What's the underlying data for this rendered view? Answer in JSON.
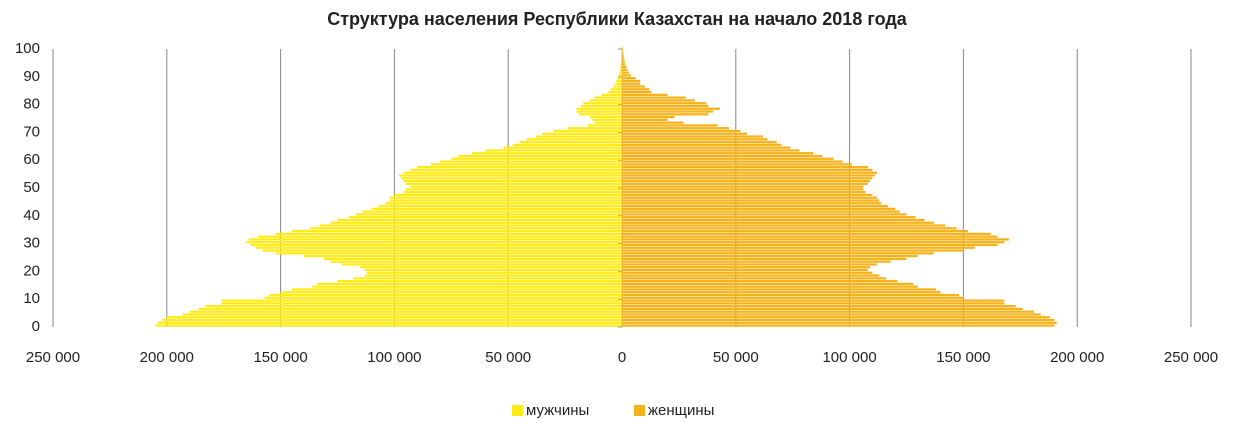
{
  "chart_data": {
    "type": "pyramid",
    "title": "Структура населения Республики Казахстан на начало 2018 года",
    "y": [
      0,
      1,
      2,
      3,
      4,
      5,
      6,
      7,
      8,
      9,
      10,
      11,
      12,
      13,
      14,
      15,
      16,
      17,
      18,
      19,
      20,
      21,
      22,
      23,
      24,
      25,
      26,
      27,
      28,
      29,
      30,
      31,
      32,
      33,
      34,
      35,
      36,
      37,
      38,
      39,
      40,
      41,
      42,
      43,
      44,
      45,
      46,
      47,
      48,
      49,
      50,
      51,
      52,
      53,
      54,
      55,
      56,
      57,
      58,
      59,
      60,
      61,
      62,
      63,
      64,
      65,
      66,
      67,
      68,
      69,
      70,
      71,
      72,
      73,
      74,
      75,
      76,
      77,
      78,
      79,
      80,
      81,
      82,
      83,
      84,
      85,
      86,
      87,
      88,
      89,
      90,
      91,
      92,
      93,
      94,
      95,
      96,
      97,
      98,
      99,
      100
    ],
    "series": [
      {
        "name": "мужчины",
        "color": "#ffeb1a",
        "values": [
          -205000,
          -204000,
          -202000,
          -200000,
          -193000,
          -190000,
          -186000,
          -183000,
          -176000,
          -176000,
          -157000,
          -155000,
          -150000,
          -145000,
          -136000,
          -134000,
          -125000,
          -118000,
          -113000,
          -112000,
          -113000,
          -115000,
          -123000,
          -128000,
          -131000,
          -140000,
          -152000,
          -158000,
          -161000,
          -163000,
          -165000,
          -164000,
          -160000,
          -152000,
          -145000,
          -137000,
          -133000,
          -128000,
          -125000,
          -120000,
          -117000,
          -114000,
          -110000,
          -107000,
          -104000,
          -102000,
          -102000,
          -100000,
          -96000,
          -95000,
          -93000,
          -95000,
          -96000,
          -97000,
          -98000,
          -96000,
          -93000,
          -90000,
          -84000,
          -80000,
          -75000,
          -72000,
          -66000,
          -60000,
          -52000,
          -48000,
          -45000,
          -42000,
          -38000,
          -35000,
          -30000,
          -24000,
          -15000,
          -12000,
          -13000,
          -14000,
          -19000,
          -20000,
          -20000,
          -18000,
          -17000,
          -14000,
          -12000,
          -9000,
          -6000,
          -5000,
          -4000,
          -3000,
          -2500,
          -2000,
          -1500,
          -1200,
          -1000,
          -800,
          -600,
          -500,
          -400,
          -300,
          -200,
          -200,
          -100
        ]
      },
      {
        "name": "женщины",
        "color": "#f5b21a",
        "values": [
          190000,
          191000,
          190000,
          188000,
          184000,
          181000,
          176000,
          173000,
          168000,
          168000,
          150000,
          148000,
          140000,
          138000,
          130000,
          128000,
          121000,
          116000,
          113000,
          110000,
          108000,
          109000,
          112000,
          118000,
          125000,
          130000,
          137000,
          150000,
          155000,
          165000,
          168000,
          170000,
          165000,
          162000,
          152000,
          147000,
          142000,
          137000,
          133000,
          129000,
          125000,
          122000,
          120000,
          117000,
          114000,
          113000,
          112000,
          110000,
          107000,
          106000,
          106000,
          108000,
          109000,
          110000,
          111000,
          112000,
          110000,
          108000,
          101000,
          97000,
          93000,
          88000,
          84000,
          78000,
          74000,
          70000,
          68000,
          64000,
          62000,
          55000,
          52000,
          47000,
          42000,
          27000,
          20000,
          23000,
          38000,
          40000,
          43000,
          38000,
          37000,
          32000,
          28000,
          20000,
          13000,
          12000,
          10000,
          8000,
          8000,
          6000,
          4000,
          3000,
          2500,
          2000,
          1500,
          1200,
          1000,
          800,
          600,
          400,
          300
        ]
      }
    ],
    "xlim": [
      -250000,
      250000
    ],
    "xticks": [
      {
        "value": -250000,
        "label": "250 000"
      },
      {
        "value": -200000,
        "label": "200 000"
      },
      {
        "value": -150000,
        "label": "150 000"
      },
      {
        "value": -100000,
        "label": "100 000"
      },
      {
        "value": -50000,
        "label": "50 000"
      },
      0,
      {
        "value": 50000,
        "label": "50 000"
      },
      {
        "value": 100000,
        "label": "100 000"
      },
      {
        "value": 150000,
        "label": "150 000"
      },
      {
        "value": 200000,
        "label": "200 000"
      },
      {
        "value": 250000,
        "label": "250 000"
      }
    ],
    "ylim": [
      0,
      100
    ],
    "yticks": [
      0,
      10,
      20,
      30,
      40,
      50,
      60,
      70,
      80,
      90,
      100
    ],
    "grid": true,
    "legend": "bottom"
  }
}
